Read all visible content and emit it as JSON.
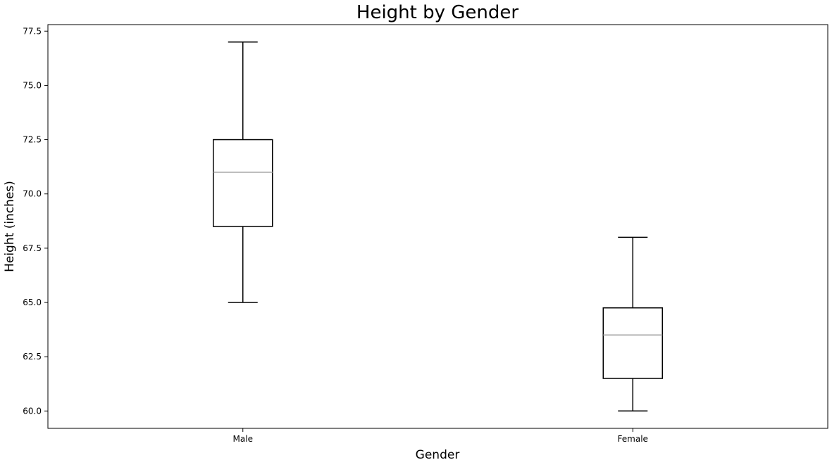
{
  "chart_data": {
    "type": "box",
    "title": "Height by Gender",
    "xlabel": "Gender",
    "ylabel": "Height (inches)",
    "categories": [
      "Male",
      "Female"
    ],
    "boxes": [
      {
        "label": "Male",
        "whisker_low": 65.0,
        "q1": 68.5,
        "median": 71.0,
        "q3": 72.5,
        "whisker_high": 77.0
      },
      {
        "label": "Female",
        "whisker_low": 60.0,
        "q1": 61.5,
        "median": 63.5,
        "q3": 64.75,
        "whisker_high": 68.0
      }
    ],
    "ylim": [
      59.2,
      77.8
    ],
    "yticks": [
      "60.0",
      "62.5",
      "65.0",
      "67.5",
      "70.0",
      "72.5",
      "75.0",
      "77.5"
    ],
    "grid": false,
    "colors": {
      "box": "#000000",
      "median": "#a0a0a0",
      "axes": "#000000"
    }
  }
}
